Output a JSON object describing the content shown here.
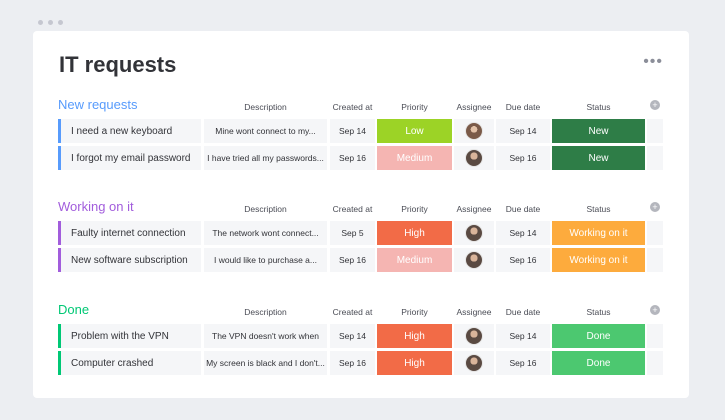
{
  "board": {
    "title": "IT requests",
    "menu_icon": "more-horizontal-icon"
  },
  "columns": {
    "description": "Description",
    "created_at": "Created at",
    "priority": "Priority",
    "assignee": "Assignee",
    "due_date": "Due date",
    "status": "Status"
  },
  "colors": {
    "new_requests": "#579bfc",
    "working_on_it": "#a25ddc",
    "done": "#00c875",
    "priority_low": "#9cd326",
    "priority_medium": "#f5b5b2",
    "priority_high": "#f26b47",
    "status_new": "#2e7d47",
    "status_working": "#fdab3d",
    "status_done": "#4cc870"
  },
  "groups": [
    {
      "title": "New requests",
      "color": "#579bfc",
      "rows": [
        {
          "name": "I need a new keyboard",
          "description": "Mine wont connect to my...",
          "created": "Sep 14",
          "priority": "Low",
          "priority_color": "#9cd326",
          "assignee": "woman-avatar",
          "due": "Sep 14",
          "status": "New",
          "status_color": "#2e7d47"
        },
        {
          "name": "I forgot my email password",
          "description": "I have tried all my passwords...",
          "created": "Sep 16",
          "priority": "Medium",
          "priority_color": "#f5b5b2",
          "assignee": "man-avatar",
          "due": "Sep 16",
          "status": "New",
          "status_color": "#2e7d47"
        }
      ]
    },
    {
      "title": "Working on it",
      "color": "#a25ddc",
      "rows": [
        {
          "name": "Faulty internet connection",
          "description": "The network wont connect...",
          "created": "Sep 5",
          "priority": "High",
          "priority_color": "#f26b47",
          "assignee": "man-avatar",
          "due": "Sep 14",
          "status": "Working on it",
          "status_color": "#fdab3d"
        },
        {
          "name": "New software subscription",
          "description": "I would like to purchase a...",
          "created": "Sep 16",
          "priority": "Medium",
          "priority_color": "#f5b5b2",
          "assignee": "man-avatar",
          "due": "Sep 16",
          "status": "Working on it",
          "status_color": "#fdab3d"
        }
      ]
    },
    {
      "title": "Done",
      "color": "#00c875",
      "rows": [
        {
          "name": "Problem with the VPN",
          "description": "The VPN doesn't work when",
          "created": "Sep 14",
          "priority": "High",
          "priority_color": "#f26b47",
          "assignee": "man-avatar",
          "due": "Sep 14",
          "status": "Done",
          "status_color": "#4cc870"
        },
        {
          "name": "Computer crashed",
          "description": "My screen is black and I don't...",
          "created": "Sep 16",
          "priority": "High",
          "priority_color": "#f26b47",
          "assignee": "man-avatar",
          "due": "Sep 16",
          "status": "Done",
          "status_color": "#4cc870"
        }
      ]
    }
  ]
}
